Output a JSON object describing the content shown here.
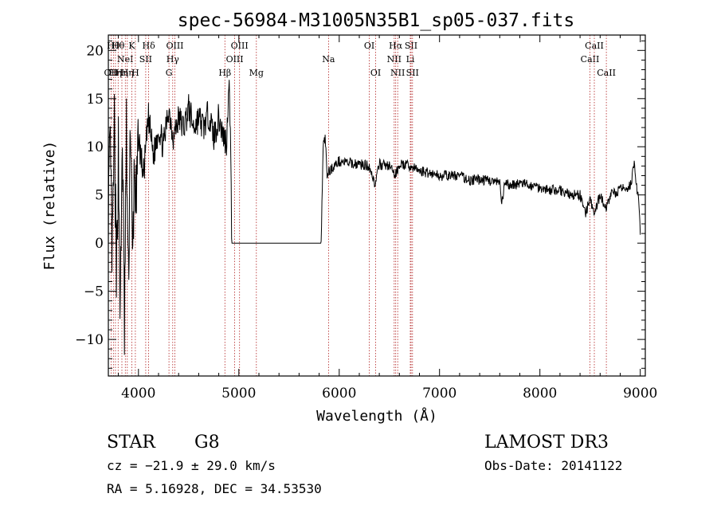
{
  "chart_data": {
    "type": "line",
    "title": "spec-56984-M31005N35B1_sp05-037.fits",
    "xlabel": "Wavelength (Å)",
    "ylabel": "Flux (relative)",
    "xlim": [
      3700,
      9050
    ],
    "ylim": [
      -13.8,
      21.6
    ],
    "x_ticks": [
      {
        "value": 4000,
        "label": "4000"
      },
      {
        "value": 5000,
        "label": "5000"
      },
      {
        "value": 6000,
        "label": "6000"
      },
      {
        "value": 7000,
        "label": "7000"
      },
      {
        "value": 8000,
        "label": "8000"
      },
      {
        "value": 9000,
        "label": "9000"
      }
    ],
    "y_ticks": [
      {
        "value": -10,
        "label": "−10"
      },
      {
        "value": -5,
        "label": "−5"
      },
      {
        "value": 0,
        "label": "0"
      },
      {
        "value": 5,
        "label": "5"
      },
      {
        "value": 10,
        "label": "10"
      },
      {
        "value": 15,
        "label": "15"
      },
      {
        "value": 20,
        "label": "20"
      }
    ],
    "grid": false,
    "line_color": "#000000",
    "marker_color": "#b22222",
    "spectrum_anchors": [
      [
        3700,
        4
      ],
      [
        3720,
        9
      ],
      [
        3740,
        -2
      ],
      [
        3760,
        12
      ],
      [
        3780,
        -5
      ],
      [
        3800,
        10
      ],
      [
        3820,
        -8
      ],
      [
        3840,
        12
      ],
      [
        3860,
        -9
      ],
      [
        3880,
        11
      ],
      [
        3900,
        -5
      ],
      [
        3920,
        14
      ],
      [
        3940,
        -3
      ],
      [
        3960,
        8
      ],
      [
        3980,
        3
      ],
      [
        4000,
        11
      ],
      [
        4050,
        7
      ],
      [
        4100,
        13
      ],
      [
        4150,
        9
      ],
      [
        4200,
        12
      ],
      [
        4250,
        10
      ],
      [
        4300,
        14
      ],
      [
        4350,
        11
      ],
      [
        4400,
        13
      ],
      [
        4450,
        12
      ],
      [
        4500,
        14
      ],
      [
        4550,
        12
      ],
      [
        4600,
        13
      ],
      [
        4650,
        12
      ],
      [
        4700,
        13.5
      ],
      [
        4750,
        11
      ],
      [
        4800,
        13
      ],
      [
        4850,
        11
      ],
      [
        4880,
        10.5
      ],
      [
        4900,
        17.5
      ],
      [
        4915,
        12
      ],
      [
        4925,
        4
      ],
      [
        4930,
        0
      ],
      [
        5820,
        0
      ],
      [
        5840,
        10
      ],
      [
        5860,
        11
      ],
      [
        5880,
        7
      ],
      [
        5900,
        7.5
      ],
      [
        5950,
        8
      ],
      [
        6000,
        8.5
      ],
      [
        6100,
        8.3
      ],
      [
        6200,
        8.2
      ],
      [
        6300,
        8
      ],
      [
        6360,
        6
      ],
      [
        6400,
        8.2
      ],
      [
        6500,
        8
      ],
      [
        6560,
        7
      ],
      [
        6600,
        8.2
      ],
      [
        6700,
        8
      ],
      [
        6800,
        7.5
      ],
      [
        6900,
        7.3
      ],
      [
        7000,
        7
      ],
      [
        7100,
        7
      ],
      [
        7200,
        7
      ],
      [
        7300,
        6.5
      ],
      [
        7400,
        6.6
      ],
      [
        7500,
        6.5
      ],
      [
        7600,
        6.2
      ],
      [
        7620,
        4
      ],
      [
        7650,
        6.2
      ],
      [
        7700,
        6
      ],
      [
        7800,
        6.2
      ],
      [
        7900,
        6
      ],
      [
        8000,
        5.8
      ],
      [
        8100,
        5.5
      ],
      [
        8200,
        5.5
      ],
      [
        8300,
        5
      ],
      [
        8400,
        5
      ],
      [
        8450,
        3
      ],
      [
        8500,
        4.5
      ],
      [
        8540,
        3
      ],
      [
        8600,
        5
      ],
      [
        8660,
        3.5
      ],
      [
        8700,
        5
      ],
      [
        8800,
        5.5
      ],
      [
        8900,
        6
      ],
      [
        8940,
        8
      ],
      [
        8960,
        6
      ],
      [
        8980,
        5
      ],
      [
        9000,
        1
      ]
    ],
    "line_markers": [
      {
        "wavelength": 3727,
        "label": "OII",
        "row": 2
      },
      {
        "wavelength": 3750,
        "label": "Hθ",
        "row": 0
      },
      {
        "wavelength": 3771,
        "label": "Hη",
        "row": 2
      },
      {
        "wavelength": 3798,
        "label": "Hθ",
        "row": 0
      },
      {
        "wavelength": 3835,
        "label": "Hη",
        "row": 2
      },
      {
        "wavelength": 3869,
        "label": "NeI",
        "row": 1
      },
      {
        "wavelength": 3889,
        "label": "Hη",
        "row": 2
      },
      {
        "wavelength": 3934,
        "label": "K",
        "row": 0
      },
      {
        "wavelength": 3969,
        "label": "H",
        "row": 2
      },
      {
        "wavelength": 4072,
        "label": "SII",
        "row": 1
      },
      {
        "wavelength": 4102,
        "label": "Hδ",
        "row": 0
      },
      {
        "wavelength": 4304,
        "label": "G",
        "row": 2
      },
      {
        "wavelength": 4341,
        "label": "Hγ",
        "row": 1
      },
      {
        "wavelength": 4363,
        "label": "OIII",
        "row": 0
      },
      {
        "wavelength": 4861,
        "label": "Hβ",
        "row": 2
      },
      {
        "wavelength": 4959,
        "label": "OIII",
        "row": 1
      },
      {
        "wavelength": 5007,
        "label": "OIII",
        "row": 0
      },
      {
        "wavelength": 5175,
        "label": "Mg",
        "row": 2
      },
      {
        "wavelength": 5894,
        "label": "Na",
        "row": 1
      },
      {
        "wavelength": 6300,
        "label": "OI",
        "row": 0
      },
      {
        "wavelength": 6364,
        "label": "OI",
        "row": 2
      },
      {
        "wavelength": 6548,
        "label": "NII",
        "row": 1
      },
      {
        "wavelength": 6563,
        "label": "Hα",
        "row": 0
      },
      {
        "wavelength": 6583,
        "label": "NII",
        "row": 2
      },
      {
        "wavelength": 6708,
        "label": "Li",
        "row": 1
      },
      {
        "wavelength": 6716,
        "label": "SII",
        "row": 0
      },
      {
        "wavelength": 6731,
        "label": "SII",
        "row": 2
      },
      {
        "wavelength": 8498,
        "label": "CaII",
        "row": 1
      },
      {
        "wavelength": 8542,
        "label": "CaII",
        "row": 0
      },
      {
        "wavelength": 8662,
        "label": "CaII",
        "row": 2
      }
    ]
  },
  "info": {
    "object_class": "STAR",
    "subclass": "G8",
    "redshift": "cz = −21.9 ± 29.0 km/s",
    "coords": "RA =   5.16928, DEC =  34.53530",
    "survey": "LAMOST DR3",
    "obs_date": "Obs-Date: 20141122"
  }
}
